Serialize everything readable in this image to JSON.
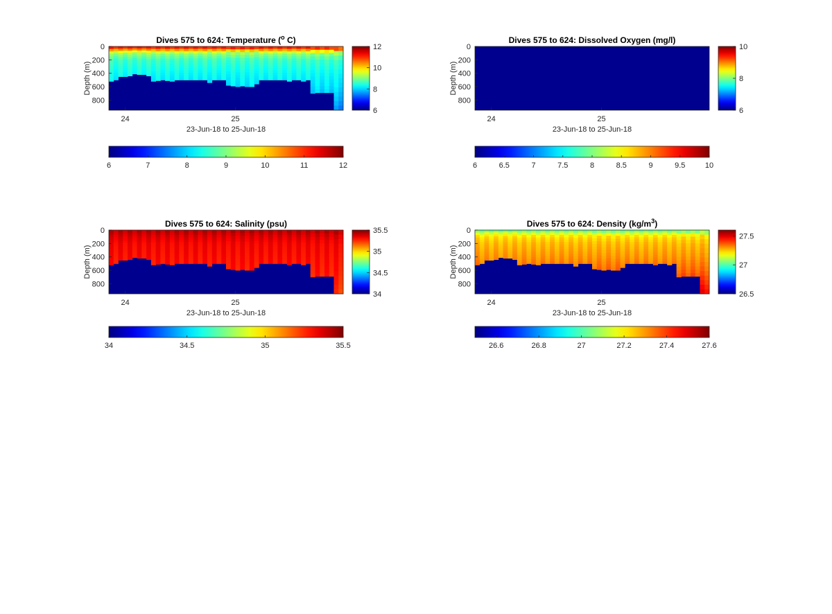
{
  "chart_data": [
    {
      "type": "heatmap",
      "title": "Dives 575 to 624: Temperature (",
      "title_sup": "o",
      "title_end": " C)",
      "ylabel": "Depth (m)",
      "xlabel": "23-Jun-18 to 25-Jun-18",
      "x_ticks": [
        "24",
        "25"
      ],
      "y_ticks": [
        "0",
        "200",
        "400",
        "600",
        "800"
      ],
      "ylim": [
        0,
        950
      ],
      "y_reversed": true,
      "colormap": "jet",
      "clim": [
        6,
        12
      ],
      "colorbar_ticks": [
        "12",
        "10",
        "8",
        "6"
      ],
      "horizontal_colorbar_ticks": [
        "6",
        "7",
        "8",
        "9",
        "10",
        "11",
        "12"
      ],
      "profile": {
        "depths": [
          0,
          30,
          100,
          200,
          400,
          600,
          800,
          950
        ],
        "values": [
          11.5,
          10.8,
          9.2,
          8.6,
          8.3,
          8.1,
          7.8,
          7.5
        ]
      }
    },
    {
      "type": "heatmap",
      "title": "Dives 575 to 624: Dissolved Oxygen (mg/l)",
      "title_sup": "",
      "title_end": "",
      "ylabel": "Depth (m)",
      "xlabel": "23-Jun-18 to 25-Jun-18",
      "x_ticks": [
        "24",
        "25"
      ],
      "y_ticks": [
        "0",
        "200",
        "400",
        "600",
        "800"
      ],
      "ylim": [
        0,
        950
      ],
      "y_reversed": true,
      "colormap": "jet",
      "clim": [
        6,
        10
      ],
      "colorbar_ticks": [
        "10",
        "8",
        "6"
      ],
      "horizontal_colorbar_ticks": [
        "6",
        "6.5",
        "7",
        "7.5",
        "8",
        "8.5",
        "9",
        "9.5",
        "10"
      ],
      "no_data": true
    },
    {
      "type": "heatmap",
      "title": "Dives 575 to 624: Salinity (psu)",
      "title_sup": "",
      "title_end": "",
      "ylabel": "Depth (m)",
      "xlabel": "23-Jun-18 to 25-Jun-18",
      "x_ticks": [
        "24",
        "25"
      ],
      "y_ticks": [
        "0",
        "200",
        "400",
        "600",
        "800"
      ],
      "ylim": [
        0,
        950
      ],
      "y_reversed": true,
      "colormap": "jet",
      "clim": [
        34,
        35.5
      ],
      "colorbar_ticks": [
        "35.5",
        "35",
        "34.5",
        "34"
      ],
      "horizontal_colorbar_ticks": [
        "34",
        "34.5",
        "35",
        "35.5"
      ],
      "profile": {
        "depths": [
          0,
          100,
          200,
          400,
          600,
          800,
          950
        ],
        "values": [
          35.42,
          35.36,
          35.32,
          35.3,
          35.28,
          35.25,
          35.22
        ]
      }
    },
    {
      "type": "heatmap",
      "title": "Dives 575 to 624: Density (kg/m",
      "title_sup": "3",
      "title_end": ")",
      "ylabel": "Depth (m)",
      "xlabel": "23-Jun-18 to 25-Jun-18",
      "x_ticks": [
        "24",
        "25"
      ],
      "y_ticks": [
        "0",
        "200",
        "400",
        "600",
        "800"
      ],
      "ylim": [
        0,
        950
      ],
      "y_reversed": true,
      "colormap": "jet",
      "clim": [
        26.5,
        27.6
      ],
      "colorbar_ticks": [
        "27.5",
        "27",
        "26.5"
      ],
      "horizontal_colorbar_ticks": [
        "26.6",
        "26.8",
        "27",
        "27.2",
        "27.4",
        "27.6"
      ],
      "profile": {
        "depths": [
          0,
          20,
          50,
          100,
          200,
          400,
          600,
          800,
          950
        ],
        "values": [
          26.95,
          27.05,
          27.15,
          27.22,
          27.26,
          27.3,
          27.35,
          27.42,
          27.48
        ]
      }
    }
  ],
  "dive_max_depths": [
    520,
    500,
    450,
    450,
    440,
    410,
    420,
    420,
    440,
    520,
    510,
    500,
    510,
    520,
    500,
    500,
    500,
    500,
    500,
    500,
    500,
    540,
    500,
    500,
    500,
    580,
    590,
    600,
    590,
    600,
    600,
    560,
    500,
    500,
    500,
    500,
    500,
    500,
    520,
    500,
    500,
    520,
    500,
    700,
    690,
    690,
    690,
    690,
    950,
    950
  ]
}
